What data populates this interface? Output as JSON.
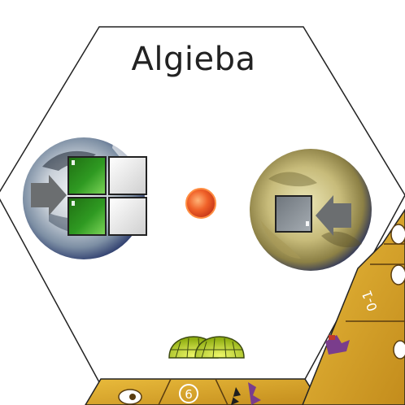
{
  "system": {
    "name": "Algieba"
  },
  "planets": [
    {
      "id": "left",
      "kind": "white-planet",
      "arrow_direction": "right",
      "slots": [
        {
          "color": "green",
          "filled": true
        },
        {
          "color": "white",
          "filled": false
        },
        {
          "color": "green",
          "filled": true
        },
        {
          "color": "white",
          "filled": false
        }
      ]
    },
    {
      "id": "right",
      "kind": "yellow-planet",
      "arrow_direction": "left",
      "slots": [
        {
          "color": "gray",
          "filled": false
        }
      ]
    }
  ],
  "star": {
    "color": "#e8441a"
  },
  "ships": {
    "count": 2,
    "color": "#b8d41e"
  },
  "adjacent_tiles": {
    "bottom_right_label": "0-1",
    "bottom_center_label": "6"
  },
  "colors": {
    "hex_border": "#222222",
    "tile_gold": "#d9a52a",
    "green_slot": "#2f8a1f",
    "gray_slot": "#7f868c",
    "arrow": "#6b6e70"
  }
}
